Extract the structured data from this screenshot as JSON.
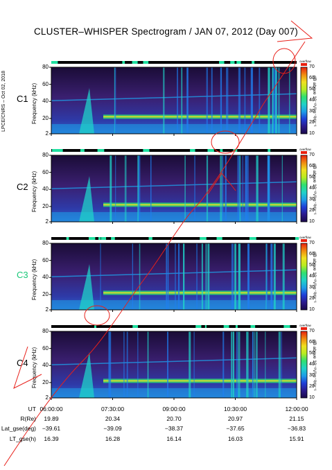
{
  "chart_data": {
    "type": "heatmap",
    "title": "CLUSTER–WHISPER Spectrogram / JAN 07, 2012 (Day 007)",
    "side_credit": "LPCE/CNRS – Oct 02, 2018",
    "ylabel": "Frequency (kHz)",
    "yticks": [
      "2",
      "20",
      "40",
      "60",
      "80"
    ],
    "ylim": [
      2,
      80
    ],
    "colorbar": {
      "label": "dB above 10⁻⁸V²m⁻²Hz⁻¹",
      "corner_label": "overflow",
      "ticks": [
        "10",
        "20",
        "30",
        "40",
        "50",
        "60",
        "70"
      ],
      "range": [
        10,
        70
      ],
      "colors": [
        "#1a0a4a",
        "#2b1a8c",
        "#1f3fd8",
        "#1e9ee8",
        "#20d2c8",
        "#30e070",
        "#b8ec20",
        "#f0e020",
        "#f08a10",
        "#e82010"
      ]
    },
    "panels": [
      {
        "name": "C1",
        "label_color": "#000000"
      },
      {
        "name": "C2",
        "label_color": "#000000"
      },
      {
        "name": "C3",
        "label_color": "#18c878"
      },
      {
        "name": "C4",
        "label_color": "#000000"
      }
    ],
    "x_axis": {
      "row_labels": [
        "UT",
        "R(Re)",
        "Lat_gse(deg)",
        "LT_gse(h)"
      ],
      "columns": [
        {
          "UT": "06:00:00",
          "R": "19.89",
          "Lat": "−39.61",
          "LT": "16.39"
        },
        {
          "UT": "07:30:00",
          "R": "20.34",
          "Lat": "−39.09",
          "LT": "16.28"
        },
        {
          "UT": "09:00:00",
          "R": "20.70",
          "Lat": "−38.37",
          "LT": "16.14"
        },
        {
          "UT": "10:30:00",
          "R": "20.97",
          "Lat": "−37.65",
          "LT": "16.03"
        },
        {
          "UT": "12:00:00",
          "R": "21.15",
          "Lat": "−36.83",
          "LT": "15.91"
        }
      ]
    }
  },
  "colors": {
    "background": "#3a1a6a",
    "overlay_red": "#e8201a"
  }
}
